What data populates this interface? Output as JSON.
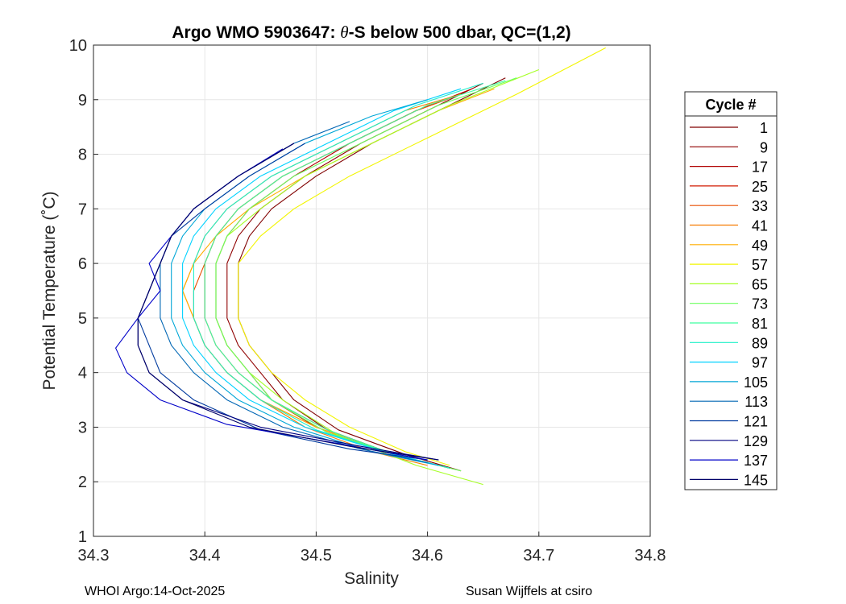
{
  "chart_data": {
    "type": "line",
    "title_prefix": "Argo WMO 5903647: ",
    "title_theta": "θ",
    "title_suffix": "-S below 500 dbar,  QC=(1,2)",
    "xlabel": "Salinity",
    "ylabel": "Potential Temperature (˚C)",
    "xlim": [
      34.3,
      34.8
    ],
    "ylim": [
      1,
      10
    ],
    "xticks": [
      34.3,
      34.4,
      34.5,
      34.6,
      34.7,
      34.8
    ],
    "xtick_labels": [
      "34.3",
      "34.4",
      "34.5",
      "34.6",
      "34.7",
      "34.8"
    ],
    "yticks": [
      1,
      2,
      3,
      4,
      5,
      6,
      7,
      8,
      9,
      10
    ],
    "ytick_labels": [
      "1",
      "2",
      "3",
      "4",
      "5",
      "6",
      "7",
      "8",
      "9",
      "10"
    ],
    "grid": true,
    "legend": {
      "title": "Cycle #",
      "position": "right-outside",
      "entries": [
        {
          "label": "1",
          "color": "#800000"
        },
        {
          "label": "9",
          "color": "#8f0000"
        },
        {
          "label": "17",
          "color": "#b00000"
        },
        {
          "label": "25",
          "color": "#d21a00"
        },
        {
          "label": "33",
          "color": "#e84f00"
        },
        {
          "label": "41",
          "color": "#f57b00"
        },
        {
          "label": "49",
          "color": "#ffae00"
        },
        {
          "label": "57",
          "color": "#f2f500"
        },
        {
          "label": "65",
          "color": "#a6ff26"
        },
        {
          "label": "73",
          "color": "#6cff5e"
        },
        {
          "label": "81",
          "color": "#3dffa0"
        },
        {
          "label": "89",
          "color": "#1ef0c8"
        },
        {
          "label": "97",
          "color": "#00d2ff"
        },
        {
          "label": "105",
          "color": "#00a6d6"
        },
        {
          "label": "113",
          "color": "#0066b4"
        },
        {
          "label": "121",
          "color": "#003a9e"
        },
        {
          "label": "129",
          "color": "#000080"
        },
        {
          "label": "137",
          "color": "#0000c8"
        },
        {
          "label": "145",
          "color": "#000068"
        }
      ]
    },
    "series": [
      {
        "name": "1",
        "color": "#800000",
        "s": [
          34.63,
          34.58,
          34.52,
          34.48,
          34.46,
          34.44,
          34.43,
          34.43,
          34.43,
          34.44,
          34.46,
          34.5,
          34.55,
          34.61,
          34.67
        ],
        "t": [
          2.2,
          2.5,
          2.95,
          3.5,
          4.0,
          4.5,
          5.0,
          5.5,
          6.0,
          6.5,
          7.0,
          7.6,
          8.2,
          8.8,
          9.4
        ]
      },
      {
        "name": "9",
        "color": "#8f0000",
        "s": [
          34.62,
          34.57,
          34.51,
          34.47,
          34.45,
          34.43,
          34.42,
          34.42,
          34.42,
          34.43,
          34.45,
          34.49,
          34.54,
          34.6,
          34.65
        ],
        "t": [
          2.25,
          2.5,
          2.95,
          3.5,
          4.0,
          4.5,
          5.0,
          5.5,
          6.0,
          6.5,
          7.0,
          7.6,
          8.2,
          8.8,
          9.3
        ]
      },
      {
        "name": "17",
        "color": "#b00000",
        "s": [
          34.62,
          34.57,
          34.51,
          34.46,
          34.44,
          34.42,
          34.41,
          34.41,
          34.41,
          34.42,
          34.44,
          34.48,
          34.53,
          34.59,
          34.64
        ],
        "t": [
          2.25,
          2.5,
          2.95,
          3.5,
          4.0,
          4.5,
          5.0,
          5.5,
          6.0,
          6.5,
          7.0,
          7.6,
          8.2,
          8.8,
          9.2
        ]
      },
      {
        "name": "25",
        "color": "#d21a00",
        "s": [
          34.61,
          34.56,
          34.5,
          34.46,
          34.43,
          34.41,
          34.4,
          34.4,
          34.4,
          34.41,
          34.43,
          34.47,
          34.53,
          34.59,
          34.63
        ],
        "t": [
          2.3,
          2.55,
          3.0,
          3.5,
          4.0,
          4.5,
          5.0,
          5.5,
          6.0,
          6.5,
          7.0,
          7.6,
          8.2,
          8.8,
          9.1
        ]
      },
      {
        "name": "33",
        "color": "#e84f00",
        "s": [
          34.61,
          34.56,
          34.5,
          34.45,
          34.42,
          34.4,
          34.39,
          34.39,
          34.4,
          34.41,
          34.43,
          34.47,
          34.53,
          34.59,
          34.63
        ],
        "t": [
          2.3,
          2.55,
          3.0,
          3.5,
          4.0,
          4.5,
          5.0,
          5.5,
          6.0,
          6.5,
          7.0,
          7.6,
          8.2,
          8.8,
          9.1
        ]
      },
      {
        "name": "41",
        "color": "#f57b00",
        "s": [
          34.6,
          34.55,
          34.49,
          34.45,
          34.42,
          34.4,
          34.39,
          34.38,
          34.39,
          34.4,
          34.42,
          34.46,
          34.52,
          34.58,
          34.63
        ],
        "t": [
          2.3,
          2.55,
          3.0,
          3.5,
          4.0,
          4.5,
          5.0,
          5.5,
          6.0,
          6.5,
          7.0,
          7.6,
          8.2,
          8.8,
          9.1
        ]
      },
      {
        "name": "49",
        "color": "#ffae00",
        "s": [
          34.61,
          34.56,
          34.5,
          34.45,
          34.42,
          34.4,
          34.39,
          34.38,
          34.39,
          34.41,
          34.44,
          34.49,
          34.55,
          34.61,
          34.66
        ],
        "t": [
          2.3,
          2.55,
          3.0,
          3.5,
          4.0,
          4.5,
          5.0,
          5.5,
          6.0,
          6.5,
          7.0,
          7.6,
          8.2,
          8.8,
          9.2
        ]
      },
      {
        "name": "57",
        "color": "#f2f500",
        "s": [
          34.62,
          34.58,
          34.53,
          34.49,
          34.46,
          34.44,
          34.43,
          34.43,
          34.43,
          34.45,
          34.48,
          34.53,
          34.6,
          34.68,
          34.76
        ],
        "t": [
          2.3,
          2.55,
          3.0,
          3.5,
          4.0,
          4.5,
          5.0,
          5.5,
          6.0,
          6.5,
          7.0,
          7.6,
          8.3,
          9.1,
          9.95
        ]
      },
      {
        "name": "65",
        "color": "#a6ff26",
        "s": [
          34.65,
          34.59,
          34.52,
          34.47,
          34.44,
          34.42,
          34.41,
          34.41,
          34.41,
          34.42,
          34.45,
          34.49,
          34.55,
          34.62,
          34.7
        ],
        "t": [
          1.95,
          2.3,
          2.85,
          3.5,
          4.0,
          4.5,
          5.0,
          5.5,
          6.0,
          6.5,
          7.0,
          7.6,
          8.2,
          8.9,
          9.55
        ]
      },
      {
        "name": "73",
        "color": "#6cff5e",
        "s": [
          34.63,
          34.58,
          34.51,
          34.46,
          34.44,
          34.42,
          34.41,
          34.41,
          34.41,
          34.42,
          34.44,
          34.48,
          34.54,
          34.61,
          34.68
        ],
        "t": [
          2.2,
          2.45,
          2.9,
          3.5,
          4.0,
          4.5,
          5.0,
          5.5,
          6.0,
          6.5,
          7.0,
          7.6,
          8.2,
          8.9,
          9.4
        ]
      },
      {
        "name": "81",
        "color": "#3dffa0",
        "s": [
          34.62,
          34.57,
          34.51,
          34.46,
          34.43,
          34.41,
          34.4,
          34.4,
          34.4,
          34.41,
          34.43,
          34.47,
          34.53,
          34.6,
          34.67
        ],
        "t": [
          2.25,
          2.5,
          2.95,
          3.5,
          4.0,
          4.5,
          5.0,
          5.5,
          6.0,
          6.5,
          7.0,
          7.6,
          8.2,
          8.9,
          9.35
        ]
      },
      {
        "name": "89",
        "color": "#1ef0c8",
        "s": [
          34.62,
          34.57,
          34.5,
          34.45,
          34.42,
          34.4,
          34.39,
          34.39,
          34.39,
          34.4,
          34.42,
          34.46,
          34.52,
          34.59,
          34.65
        ],
        "t": [
          2.25,
          2.5,
          2.95,
          3.5,
          4.0,
          4.5,
          5.0,
          5.5,
          6.0,
          6.5,
          7.0,
          7.6,
          8.2,
          8.9,
          9.3
        ]
      },
      {
        "name": "97",
        "color": "#00d2ff",
        "s": [
          34.61,
          34.56,
          34.49,
          34.44,
          34.41,
          34.39,
          34.38,
          34.38,
          34.38,
          34.39,
          34.41,
          34.45,
          34.51,
          34.57,
          34.63
        ],
        "t": [
          2.3,
          2.55,
          3.0,
          3.5,
          4.0,
          4.5,
          5.0,
          5.5,
          6.0,
          6.5,
          7.0,
          7.6,
          8.2,
          8.8,
          9.2
        ]
      },
      {
        "name": "105",
        "color": "#00a6d6",
        "s": [
          34.61,
          34.55,
          34.48,
          34.43,
          34.4,
          34.38,
          34.37,
          34.37,
          34.37,
          34.38,
          34.4,
          34.44,
          34.49,
          34.55,
          34.6
        ],
        "t": [
          2.3,
          2.55,
          3.0,
          3.5,
          4.0,
          4.5,
          5.0,
          5.5,
          6.0,
          6.5,
          7.0,
          7.6,
          8.2,
          8.7,
          9.0
        ]
      },
      {
        "name": "113",
        "color": "#0066b4",
        "s": [
          34.6,
          34.54,
          34.47,
          34.42,
          34.39,
          34.37,
          34.36,
          34.36,
          34.36,
          34.37,
          34.39,
          34.43,
          34.48,
          34.53
        ],
        "t": [
          2.35,
          2.6,
          3.0,
          3.5,
          4.0,
          4.5,
          5.0,
          5.5,
          6.0,
          6.5,
          7.0,
          7.6,
          8.2,
          8.6
        ]
      },
      {
        "name": "121",
        "color": "#003a9e",
        "s": [
          34.6,
          34.53,
          34.45,
          34.39,
          34.36,
          34.35,
          34.34,
          34.35,
          34.36,
          34.37,
          34.4,
          34.44,
          34.49
        ],
        "t": [
          2.4,
          2.6,
          2.95,
          3.5,
          4.0,
          4.5,
          5.0,
          5.5,
          6.0,
          6.5,
          7.0,
          7.6,
          8.2
        ]
      },
      {
        "name": "129",
        "color": "#000080",
        "s": [
          34.61,
          34.54,
          34.45,
          34.38,
          34.35,
          34.34,
          34.34,
          34.35,
          34.36,
          34.37,
          34.39,
          34.43,
          34.48
        ],
        "t": [
          2.4,
          2.65,
          3.0,
          3.5,
          4.0,
          4.5,
          5.0,
          5.5,
          6.0,
          6.5,
          7.0,
          7.6,
          8.2
        ]
      },
      {
        "name": "137",
        "color": "#0000c8",
        "s": [
          34.6,
          34.52,
          34.42,
          34.36,
          34.33,
          34.32,
          34.34,
          34.36,
          34.35,
          34.37,
          34.39,
          34.43,
          34.47
        ],
        "t": [
          2.4,
          2.7,
          3.05,
          3.5,
          4.0,
          4.45,
          5.0,
          5.5,
          6.0,
          6.5,
          7.0,
          7.6,
          8.1
        ]
      },
      {
        "name": "145",
        "color": "#000068",
        "s": [
          34.61,
          34.53,
          34.44,
          34.38,
          34.35,
          34.34,
          34.34,
          34.35,
          34.36,
          34.37,
          34.39,
          34.43,
          34.48
        ],
        "t": [
          2.4,
          2.65,
          3.0,
          3.5,
          4.0,
          4.5,
          5.0,
          5.5,
          6.0,
          6.5,
          7.0,
          7.6,
          8.2
        ]
      }
    ]
  },
  "footer": {
    "left": "WHOI Argo:14-Oct-2025",
    "right": "Susan Wijffels at csiro"
  }
}
